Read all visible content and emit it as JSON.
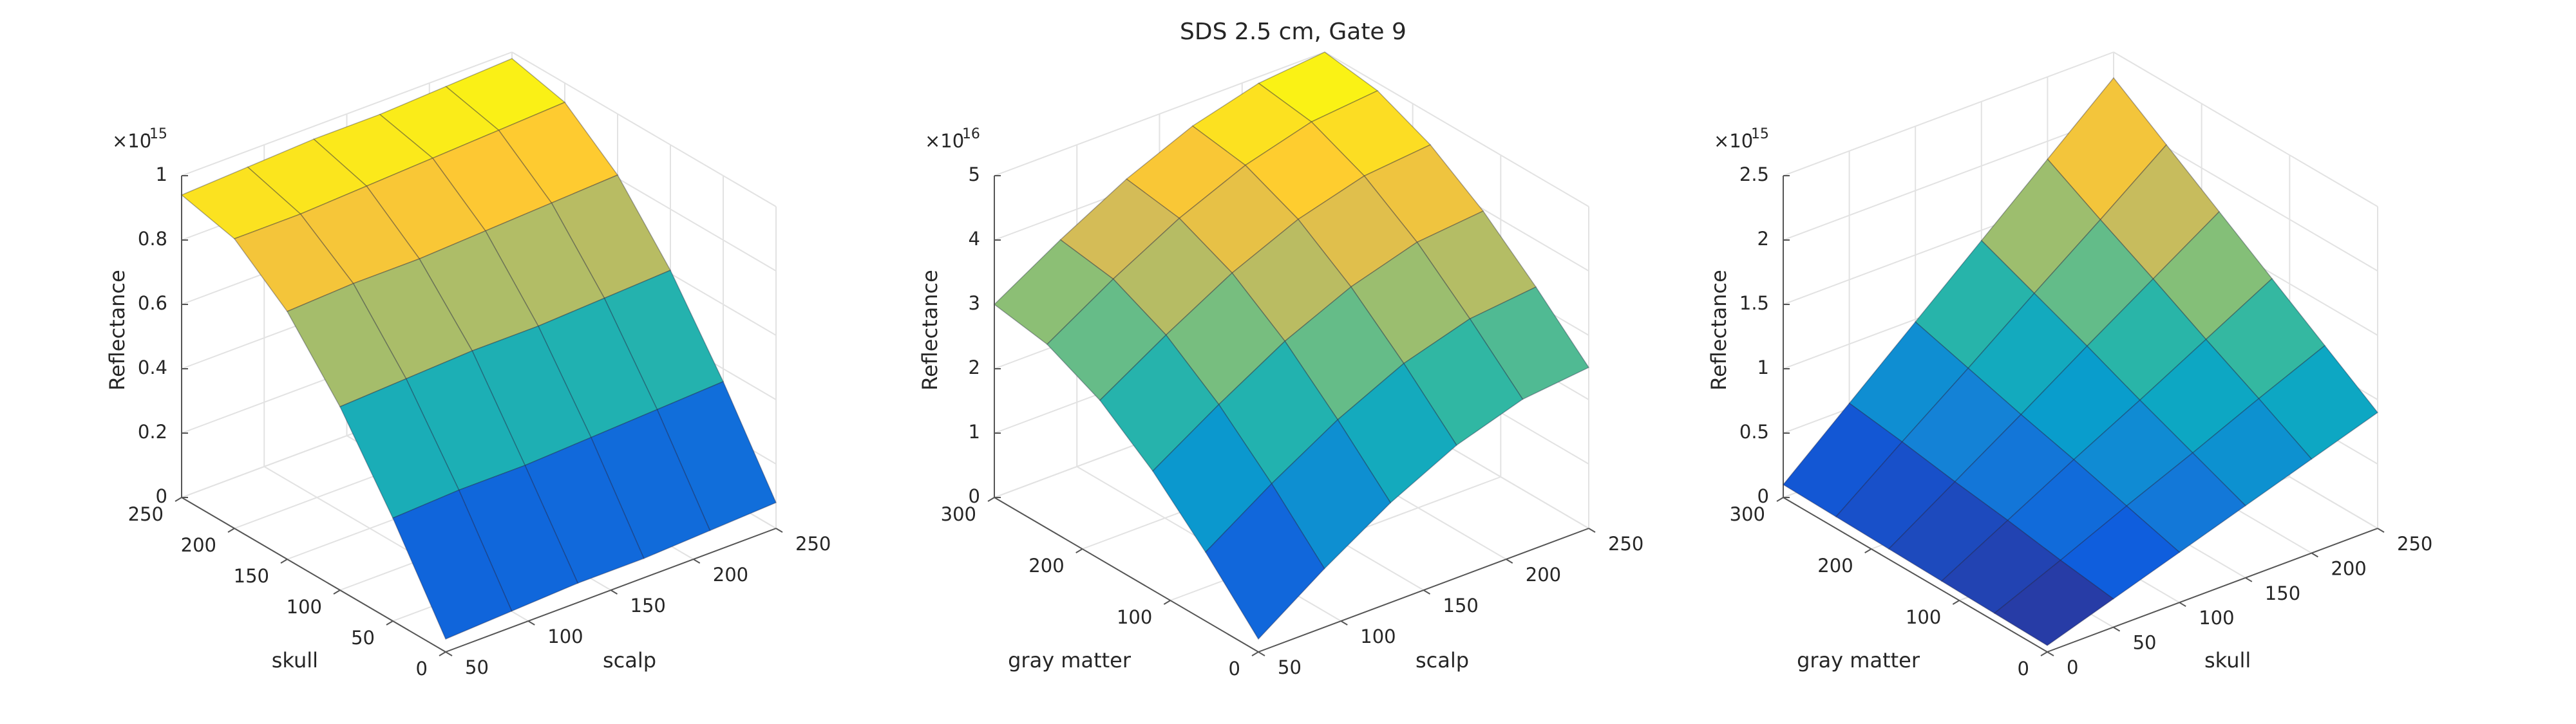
{
  "title": "SDS 2.5 cm, Gate 9",
  "chart_data": [
    {
      "type": "surface",
      "xlabel": "scalp",
      "ylabel": "skull",
      "zlabel": "Reflectance",
      "z_exponent": {
        "base": "×10",
        "power": "-15"
      },
      "colormap": "parula",
      "grid": true,
      "x": [
        50,
        90,
        130,
        170,
        210,
        250
      ],
      "y": [
        0,
        50,
        100,
        150,
        200,
        250
      ],
      "z": [
        [
          0.04,
          0.05,
          0.06,
          0.06,
          0.07,
          0.08
        ],
        [
          0.32,
          0.33,
          0.33,
          0.34,
          0.35,
          0.36
        ],
        [
          0.57,
          0.58,
          0.59,
          0.59,
          0.6,
          0.61
        ],
        [
          0.77,
          0.78,
          0.78,
          0.79,
          0.8,
          0.81
        ],
        [
          0.9,
          0.9,
          0.91,
          0.92,
          0.93,
          0.94
        ],
        [
          0.94,
          0.95,
          0.96,
          0.96,
          0.97,
          0.98
        ]
      ],
      "xlim": [
        50,
        250
      ],
      "xticks": [
        50,
        100,
        150,
        200,
        250
      ],
      "ylim": [
        0,
        250
      ],
      "yticks": [
        0,
        50,
        100,
        150,
        200,
        250
      ],
      "zlim": [
        0,
        1
      ],
      "zticks": [
        0,
        0.2,
        0.4,
        0.6,
        0.8,
        1
      ]
    },
    {
      "type": "surface",
      "xlabel": "scalp",
      "ylabel": "gray matter",
      "zlabel": "Reflectance",
      "z_exponent": {
        "base": "×10",
        "power": "-16"
      },
      "colormap": "parula",
      "grid": true,
      "x": [
        50,
        90,
        130,
        170,
        210,
        250
      ],
      "y": [
        0,
        60,
        120,
        180,
        240,
        300
      ],
      "z": [
        [
          0.2,
          0.91,
          1.55,
          2.06,
          2.39,
          2.5
        ],
        [
          1.07,
          1.75,
          2.36,
          2.85,
          3.16,
          3.27
        ],
        [
          1.85,
          2.5,
          3.1,
          3.56,
          3.87,
          3.97
        ],
        [
          2.47,
          3.1,
          3.68,
          4.13,
          4.42,
          4.52
        ],
        [
          2.86,
          3.49,
          4.05,
          4.49,
          4.78,
          4.88
        ],
        [
          3.0,
          3.62,
          4.18,
          4.62,
          4.9,
          5.0
        ]
      ],
      "xlim": [
        50,
        250
      ],
      "xticks": [
        50,
        100,
        150,
        200,
        250
      ],
      "ylim": [
        0,
        300
      ],
      "yticks": [
        0,
        100,
        200,
        300
      ],
      "zlim": [
        0,
        5
      ],
      "zticks": [
        0,
        1,
        2,
        3,
        4,
        5
      ]
    },
    {
      "type": "surface",
      "xlabel": "skull",
      "ylabel": "gray matter",
      "zlabel": "Reflectance",
      "z_exponent": {
        "base": "×10",
        "power": "-15"
      },
      "colormap": "parula",
      "grid": true,
      "x": [
        0,
        50,
        100,
        150,
        200,
        250
      ],
      "y": [
        0,
        60,
        120,
        180,
        240,
        300
      ],
      "z": [
        [
          0.05,
          0.22,
          0.39,
          0.56,
          0.73,
          0.9
        ],
        [
          0.06,
          0.28,
          0.51,
          0.73,
          0.96,
          1.18
        ],
        [
          0.07,
          0.35,
          0.63,
          0.9,
          1.18,
          1.46
        ],
        [
          0.08,
          0.41,
          0.74,
          1.08,
          1.41,
          1.74
        ],
        [
          0.09,
          0.48,
          0.86,
          1.25,
          1.63,
          2.02
        ],
        [
          0.1,
          0.54,
          0.98,
          1.42,
          1.86,
          2.3
        ]
      ],
      "xlim": [
        0,
        250
      ],
      "xticks": [
        0,
        50,
        100,
        150,
        200,
        250
      ],
      "ylim": [
        0,
        300
      ],
      "yticks": [
        0,
        100,
        200,
        300
      ],
      "zlim": [
        0,
        2.5
      ],
      "zticks": [
        0,
        0.5,
        1,
        1.5,
        2,
        2.5
      ]
    }
  ]
}
